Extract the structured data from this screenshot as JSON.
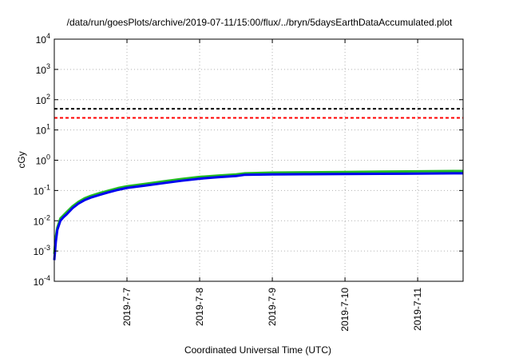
{
  "chart_data": {
    "type": "line",
    "title": "/data/run/goesPlots/archive/2019-07-11/15:00/flux/../bryn/5daysEarthDataAccumulated.plot",
    "xlabel": "Coordinated Universal Time (UTC)",
    "ylabel": "cGy",
    "yscale": "log",
    "ylim": [
      0.0001,
      10000
    ],
    "xlim": [
      "2019-07-06T00:00",
      "2019-07-11T15:00"
    ],
    "grid": true,
    "x_ticks": [
      "2019-7-7",
      "2019-7-8",
      "2019-7-9",
      "2019-7-10",
      "2019-7-11"
    ],
    "y_ticks": [
      {
        "base": "10",
        "exp": "-4",
        "value": 0.0001
      },
      {
        "base": "10",
        "exp": "-3",
        "value": 0.001
      },
      {
        "base": "10",
        "exp": "-2",
        "value": 0.01
      },
      {
        "base": "10",
        "exp": "-1",
        "value": 0.1
      },
      {
        "base": "10",
        "exp": "0",
        "value": 1
      },
      {
        "base": "10",
        "exp": "1",
        "value": 10
      },
      {
        "base": "10",
        "exp": "2",
        "value": 100
      },
      {
        "base": "10",
        "exp": "3",
        "value": 1000
      },
      {
        "base": "10",
        "exp": "4",
        "value": 10000
      }
    ],
    "reference_lines": [
      {
        "value": 50,
        "color": "#000000",
        "style": "dashed"
      },
      {
        "value": 25,
        "color": "#ff0000",
        "style": "dashed"
      }
    ],
    "series": [
      {
        "color": "#22bb22",
        "x": [
          "2019-07-06T00:00",
          "2019-07-06T00:30",
          "2019-07-06T01:00",
          "2019-07-06T02:00",
          "2019-07-06T03:00",
          "2019-07-06T04:00",
          "2019-07-06T06:00",
          "2019-07-06T08:00",
          "2019-07-06T10:00",
          "2019-07-06T12:00",
          "2019-07-06T15:00",
          "2019-07-06T18:00",
          "2019-07-06T21:00",
          "2019-07-07T00:00",
          "2019-07-07T06:00",
          "2019-07-07T12:00",
          "2019-07-07T18:00",
          "2019-07-08T00:00",
          "2019-07-08T06:00",
          "2019-07-08T12:00",
          "2019-07-08T15:00",
          "2019-07-09T00:00",
          "2019-07-09T12:00",
          "2019-07-10T00:00",
          "2019-07-10T12:00",
          "2019-07-11T00:00",
          "2019-07-11T12:00",
          "2019-07-11T15:00"
        ],
        "y": [
          0.0008,
          0.003,
          0.006,
          0.012,
          0.015,
          0.019,
          0.03,
          0.042,
          0.055,
          0.066,
          0.082,
          0.1,
          0.12,
          0.138,
          0.165,
          0.2,
          0.24,
          0.28,
          0.31,
          0.34,
          0.37,
          0.39,
          0.4,
          0.41,
          0.42,
          0.43,
          0.44,
          0.44
        ]
      },
      {
        "color": "#0000ee",
        "x": [
          "2019-07-06T00:00",
          "2019-07-06T00:30",
          "2019-07-06T01:00",
          "2019-07-06T02:00",
          "2019-07-06T03:00",
          "2019-07-06T04:00",
          "2019-07-06T06:00",
          "2019-07-06T08:00",
          "2019-07-06T10:00",
          "2019-07-06T12:00",
          "2019-07-06T15:00",
          "2019-07-06T18:00",
          "2019-07-06T21:00",
          "2019-07-07T00:00",
          "2019-07-07T06:00",
          "2019-07-07T12:00",
          "2019-07-07T18:00",
          "2019-07-08T00:00",
          "2019-07-08T06:00",
          "2019-07-08T12:00",
          "2019-07-08T15:00",
          "2019-07-09T00:00",
          "2019-07-09T12:00",
          "2019-07-10T00:00",
          "2019-07-10T12:00",
          "2019-07-11T00:00",
          "2019-07-11T12:00",
          "2019-07-11T15:00"
        ],
        "y": [
          0.0005,
          0.002,
          0.005,
          0.01,
          0.013,
          0.016,
          0.026,
          0.037,
          0.048,
          0.058,
          0.072,
          0.088,
          0.105,
          0.122,
          0.145,
          0.175,
          0.21,
          0.245,
          0.275,
          0.3,
          0.33,
          0.34,
          0.345,
          0.35,
          0.355,
          0.36,
          0.37,
          0.37
        ]
      }
    ]
  }
}
